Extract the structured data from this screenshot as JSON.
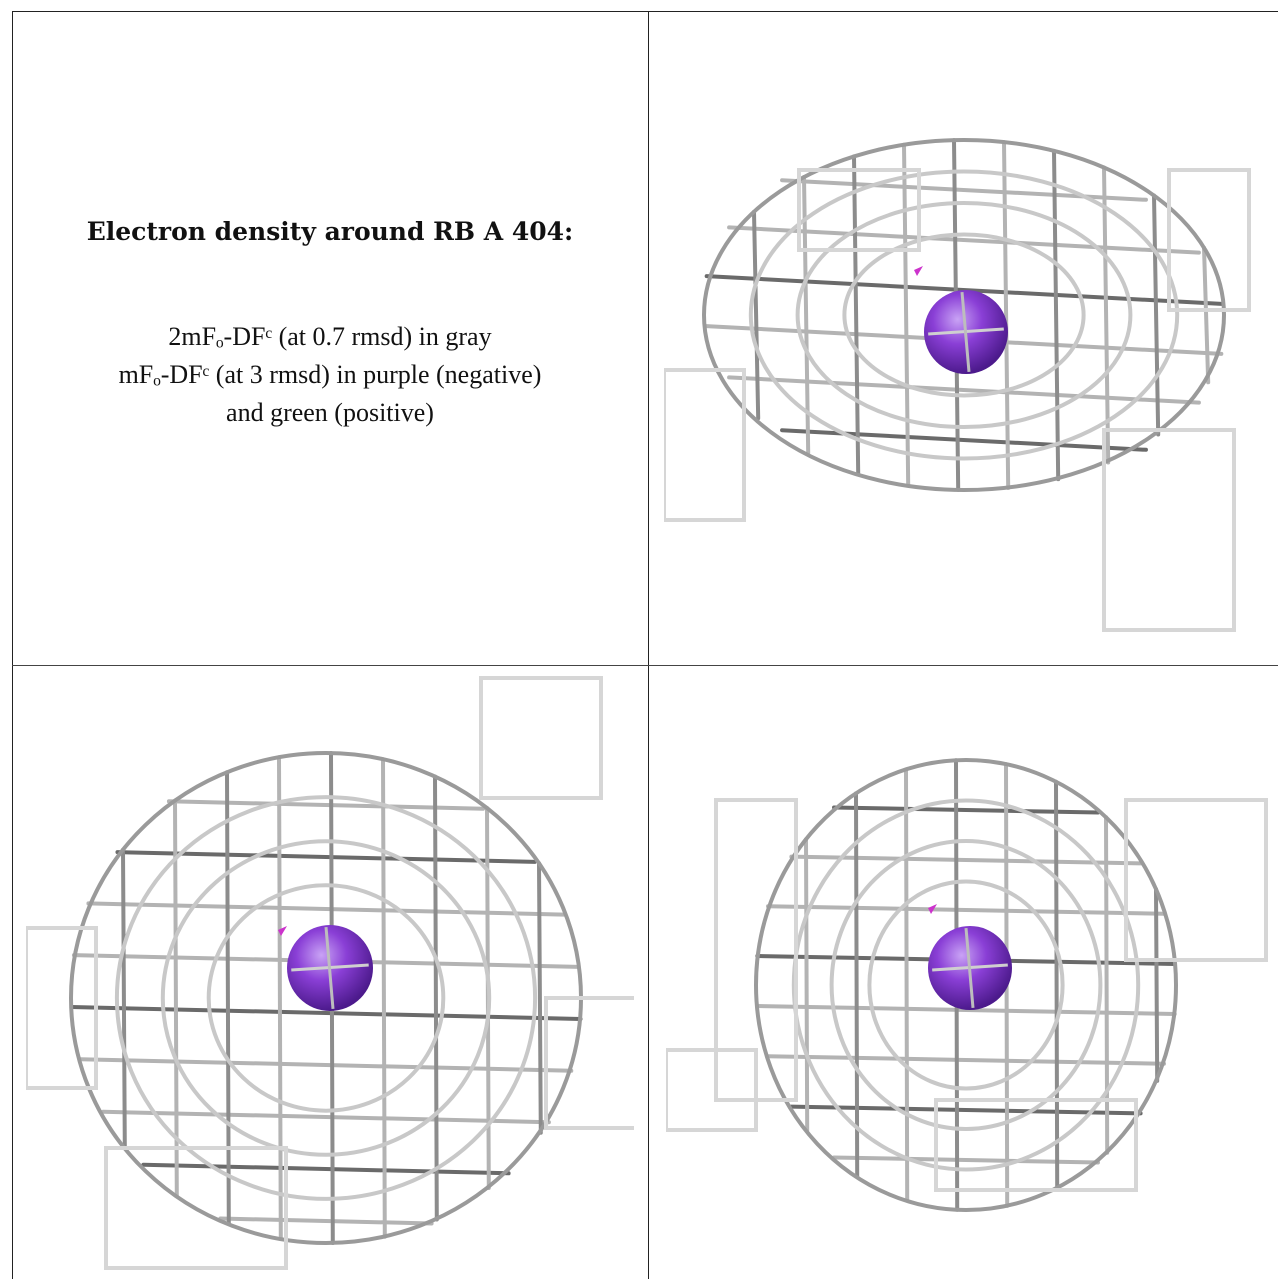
{
  "caption": {
    "title": "Electron density around RB A 404:",
    "line1": "2mFₒ-DFᶜ (at 0.7 rmsd) in gray",
    "line2": "mFₒ-DFᶜ (at 3 rmsd) in purple (negative)",
    "line3": "and green (positive)"
  },
  "colors": {
    "mesh": "#b3b3b3",
    "mesh_dark": "#6a6a6a",
    "atom": "#8a3fd6",
    "negative_density": "#cc33cc",
    "grid_lines": "#222222"
  },
  "panels": [
    {
      "name": "view-1",
      "atom_icon": "rubidium-sphere-icon"
    },
    {
      "name": "view-2",
      "atom_icon": "rubidium-sphere-icon"
    },
    {
      "name": "view-3",
      "atom_icon": "rubidium-sphere-icon"
    }
  ]
}
